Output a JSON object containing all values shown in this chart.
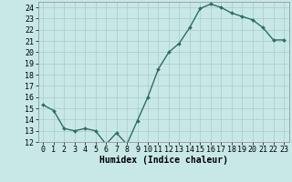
{
  "x": [
    0,
    1,
    2,
    3,
    4,
    5,
    6,
    7,
    8,
    9,
    10,
    11,
    12,
    13,
    14,
    15,
    16,
    17,
    18,
    19,
    20,
    21,
    22,
    23
  ],
  "y": [
    15.3,
    14.8,
    13.2,
    13.0,
    13.2,
    13.0,
    11.8,
    12.8,
    11.8,
    13.9,
    16.0,
    18.5,
    20.0,
    20.8,
    22.2,
    23.9,
    24.3,
    24.0,
    23.5,
    23.2,
    22.9,
    22.2,
    21.1,
    21.1
  ],
  "line_color": "#2e6e5e",
  "marker": "D",
  "marker_size": 2.0,
  "bg_color": "#c8e8e8",
  "grid_color": "#b0d0d0",
  "xlabel": "Humidex (Indice chaleur)",
  "xlim": [
    -0.5,
    23.5
  ],
  "ylim": [
    12,
    24.5
  ],
  "yticks": [
    12,
    13,
    14,
    15,
    16,
    17,
    18,
    19,
    20,
    21,
    22,
    23,
    24
  ],
  "xticks": [
    0,
    1,
    2,
    3,
    4,
    5,
    6,
    7,
    8,
    9,
    10,
    11,
    12,
    13,
    14,
    15,
    16,
    17,
    18,
    19,
    20,
    21,
    22,
    23
  ],
  "xlabel_fontsize": 7,
  "tick_fontsize": 6,
  "line_width": 1.0
}
